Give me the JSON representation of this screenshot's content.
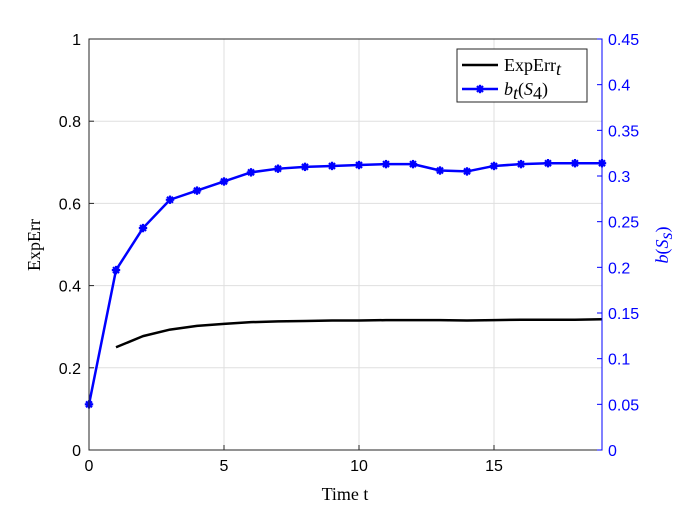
{
  "chart_data": {
    "type": "line",
    "xlabel": "Time t",
    "ylabel_left": "ExpErr",
    "ylabel_right": "b(S_s)",
    "xlim": [
      0,
      19
    ],
    "ylim_left": [
      0,
      1
    ],
    "ylim_right": [
      0,
      0.45
    ],
    "xticks": [
      0,
      5,
      10,
      15
    ],
    "xtick_labels": [
      "0",
      "5",
      "10",
      "15"
    ],
    "yticks_left": [
      0,
      0.2,
      0.4,
      0.6,
      0.8,
      1
    ],
    "ytick_labels_left": [
      "0",
      "0.2",
      "0.4",
      "0.6",
      "0.8",
      "1"
    ],
    "yticks_right": [
      0,
      0.05,
      0.1,
      0.15,
      0.2,
      0.25,
      0.3,
      0.35,
      0.4,
      0.45
    ],
    "ytick_labels_right": [
      "0",
      "0.05",
      "0.1",
      "0.15",
      "0.2",
      "0.25",
      "0.3",
      "0.35",
      "0.4",
      "0.45"
    ],
    "grid": true,
    "legend_position": "top-right",
    "series": [
      {
        "name": "ExpErr_t",
        "axis": "left",
        "color": "#000000",
        "marker": "none",
        "x": [
          1,
          2,
          3,
          4,
          5,
          6,
          7,
          8,
          9,
          10,
          11,
          12,
          13,
          14,
          15,
          16,
          17,
          18,
          19
        ],
        "y": [
          0.25,
          0.277,
          0.293,
          0.302,
          0.307,
          0.311,
          0.313,
          0.314,
          0.315,
          0.315,
          0.316,
          0.316,
          0.316,
          0.315,
          0.316,
          0.317,
          0.317,
          0.317,
          0.318
        ]
      },
      {
        "name": "b_t(S_4)",
        "axis": "right",
        "color": "#0000ff",
        "marker": "asterisk",
        "x": [
          0,
          1,
          2,
          3,
          4,
          5,
          6,
          7,
          8,
          9,
          10,
          11,
          12,
          13,
          14,
          15,
          16,
          17,
          18,
          19
        ],
        "y": [
          0.05,
          0.197,
          0.243,
          0.274,
          0.284,
          0.294,
          0.304,
          0.308,
          0.31,
          0.311,
          0.312,
          0.313,
          0.313,
          0.306,
          0.305,
          0.311,
          0.313,
          0.314,
          0.314,
          0.314
        ]
      }
    ]
  }
}
